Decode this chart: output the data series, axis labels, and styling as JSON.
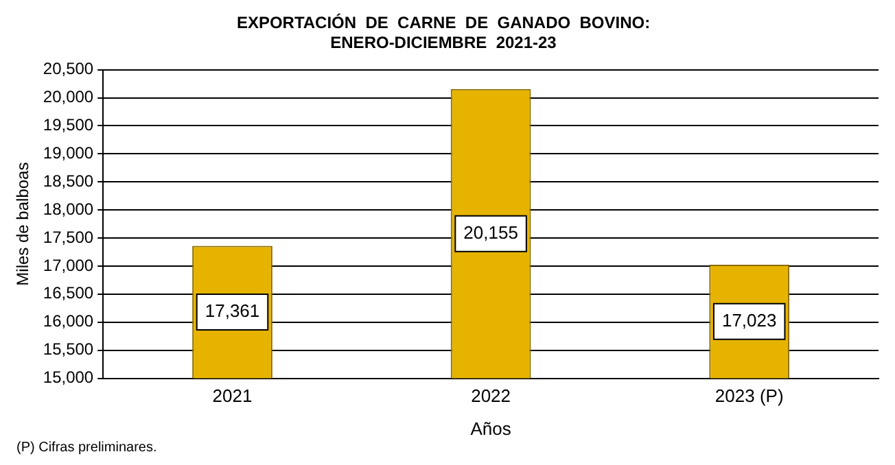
{
  "chart_data": {
    "type": "bar",
    "title": "EXPORTACIÓN  DE  CARNE  DE  GANADO  BOVINO:\nENERO-DICIEMBRE  2021-23",
    "xlabel": "Años",
    "ylabel": "Miles de balboas",
    "categories": [
      "2021",
      "2022",
      "2023 (P)"
    ],
    "values": [
      17361,
      20155,
      17023
    ],
    "value_labels": [
      "17,361",
      "20,155",
      "17,023"
    ],
    "color": "#e6b400",
    "ylim": [
      15000,
      20500
    ],
    "yticks": [
      {
        "value": 15000,
        "label": "15,000"
      },
      {
        "value": 15500,
        "label": "15,500"
      },
      {
        "value": 16000,
        "label": "16,000"
      },
      {
        "value": 16500,
        "label": "16,500"
      },
      {
        "value": 17000,
        "label": "17,000"
      },
      {
        "value": 17500,
        "label": "17,500"
      },
      {
        "value": 18000,
        "label": "18,000"
      },
      {
        "value": 18500,
        "label": "18,500"
      },
      {
        "value": 19000,
        "label": "19,000"
      },
      {
        "value": 19500,
        "label": "19,500"
      },
      {
        "value": 20000,
        "label": "20,000"
      },
      {
        "value": 20500,
        "label": "20,500"
      }
    ],
    "grid": "y",
    "annotations": [
      "(P) Cifras preliminares."
    ]
  }
}
